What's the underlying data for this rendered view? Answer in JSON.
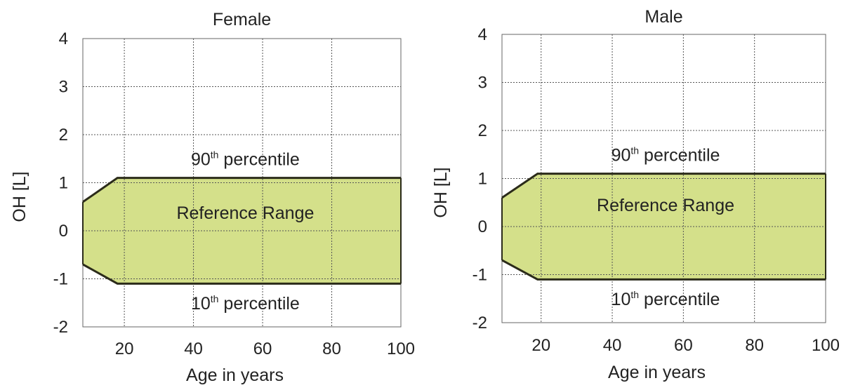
{
  "chart_data": [
    {
      "type": "area",
      "title": "Female",
      "xlabel": "Age in years",
      "ylabel": "OH [L]",
      "xlim": [
        8,
        100
      ],
      "ylim": [
        -2,
        4
      ],
      "xticks": [
        "20",
        "40",
        "60",
        "80",
        "100"
      ],
      "xtick_values": [
        20,
        40,
        60,
        80,
        100
      ],
      "yticks": [
        "4",
        "3",
        "2",
        "1",
        "0",
        "-1",
        "-2"
      ],
      "ytick_values": [
        4,
        3,
        2,
        1,
        0,
        -1,
        -2
      ],
      "grid": true,
      "band": {
        "name": "Reference Range",
        "upper": [
          {
            "x": 8,
            "y": 0.6
          },
          {
            "x": 18,
            "y": 1.1
          },
          {
            "x": 100,
            "y": 1.1
          }
        ],
        "lower": [
          {
            "x": 8,
            "y": -0.7
          },
          {
            "x": 18,
            "y": -1.1
          },
          {
            "x": 100,
            "y": -1.1
          }
        ],
        "fill": "#d4e08a",
        "stroke": "#2b2b1a"
      },
      "annotations": [
        {
          "base": "90",
          "sup": "th",
          "rest": " percentile",
          "x": 55,
          "y": 1.5
        },
        {
          "base": "",
          "sup": "",
          "rest": "Reference Range",
          "x": 55,
          "y": 0.38
        },
        {
          "base": "10",
          "sup": "th",
          "rest": " percentile",
          "x": 55,
          "y": -1.5
        }
      ]
    },
    {
      "type": "area",
      "title": "Male",
      "xlabel": "Age in years",
      "ylabel": "OH [L]",
      "xlim": [
        9,
        100
      ],
      "ylim": [
        -2,
        4
      ],
      "xticks": [
        "20",
        "40",
        "60",
        "80",
        "100"
      ],
      "xtick_values": [
        20,
        40,
        60,
        80,
        100
      ],
      "yticks": [
        "4",
        "3",
        "2",
        "1",
        "0",
        "-1",
        "-2"
      ],
      "ytick_values": [
        4,
        3,
        2,
        1,
        0,
        -1,
        -2
      ],
      "grid": true,
      "band": {
        "name": "Reference Range",
        "upper": [
          {
            "x": 9,
            "y": 0.6
          },
          {
            "x": 19,
            "y": 1.1
          },
          {
            "x": 100,
            "y": 1.1
          }
        ],
        "lower": [
          {
            "x": 9,
            "y": -0.7
          },
          {
            "x": 19,
            "y": -1.1
          },
          {
            "x": 100,
            "y": -1.1
          }
        ],
        "fill": "#d4e08a",
        "stroke": "#2b2b1a"
      },
      "annotations": [
        {
          "base": "90",
          "sup": "th",
          "rest": " percentile",
          "x": 55,
          "y": 1.5
        },
        {
          "base": "",
          "sup": "",
          "rest": "Reference Range",
          "x": 55,
          "y": 0.45
        },
        {
          "base": "10",
          "sup": "th",
          "rest": " percentile",
          "x": 55,
          "y": -1.5
        }
      ]
    }
  ]
}
